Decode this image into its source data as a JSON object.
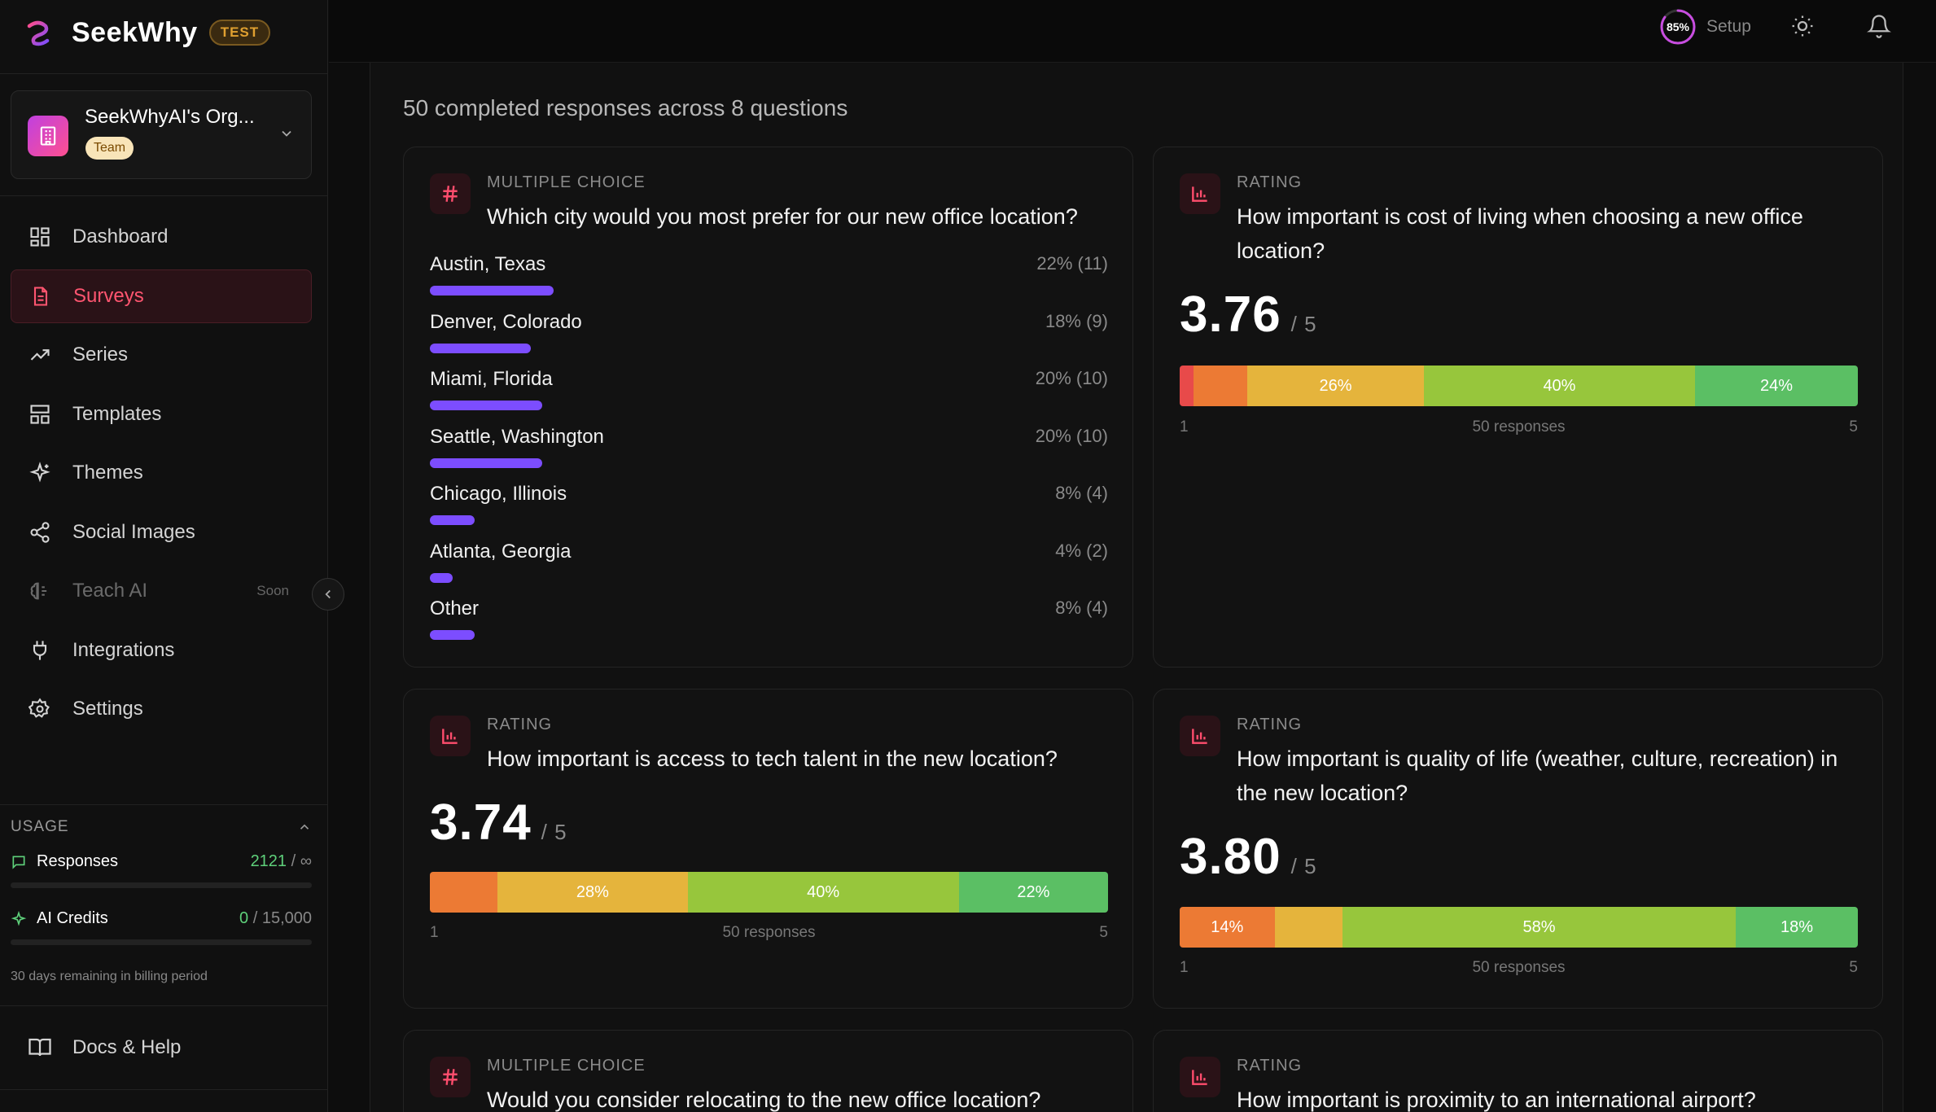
{
  "brand": {
    "name": "SeekWhy",
    "badge": "TEST"
  },
  "org": {
    "name": "SeekWhyAI's Org...",
    "plan": "Team"
  },
  "nav": {
    "dashboard": "Dashboard",
    "surveys": "Surveys",
    "series": "Series",
    "templates": "Templates",
    "themes": "Themes",
    "social": "Social Images",
    "teach": "Teach AI",
    "teach_badge": "Soon",
    "integrations": "Integrations",
    "settings": "Settings"
  },
  "usage": {
    "heading": "USAGE",
    "responses_label": "Responses",
    "responses_value": "2121",
    "responses_limit": "/ ∞",
    "credits_label": "AI Credits",
    "credits_value": "0",
    "credits_limit": "/ 15,000",
    "billing_note": "30 days remaining in billing period"
  },
  "docs": {
    "label": "Docs & Help"
  },
  "topbar": {
    "setup_percent": "85%",
    "setup_label": "Setup"
  },
  "summary": "50 completed responses across 8 questions",
  "cards": [
    {
      "type": "MULTIPLE CHOICE",
      "title": "Which city would you most prefer for our new office location?",
      "options": [
        {
          "label": "Austin, Texas",
          "pct": "22% (11)",
          "fraction": 0.22
        },
        {
          "label": "Denver, Colorado",
          "pct": "18% (9)",
          "fraction": 0.18
        },
        {
          "label": "Miami, Florida",
          "pct": "20% (10)",
          "fraction": 0.2
        },
        {
          "label": "Seattle, Washington",
          "pct": "20% (10)",
          "fraction": 0.2
        },
        {
          "label": "Chicago, Illinois",
          "pct": "8% (4)",
          "fraction": 0.08
        },
        {
          "label": "Atlanta, Georgia",
          "pct": "4% (2)",
          "fraction": 0.04
        },
        {
          "label": "Other",
          "pct": "8% (4)",
          "fraction": 0.08
        }
      ]
    },
    {
      "type": "RATING",
      "title": "How important is cost of living when choosing a new office location?",
      "score": "3.76",
      "denominator": "/ 5",
      "segments": [
        {
          "share": 2,
          "label": ""
        },
        {
          "share": 8,
          "label": ""
        },
        {
          "share": 26,
          "label": "26%"
        },
        {
          "share": 40,
          "label": "40%"
        },
        {
          "share": 24,
          "label": "24%"
        }
      ],
      "axis_min": "1",
      "axis_max": "5",
      "responses": "50 responses"
    },
    {
      "type": "RATING",
      "title": "How important is access to tech talent in the new location?",
      "score": "3.74",
      "denominator": "/ 5",
      "segments": [
        {
          "share": 0,
          "label": ""
        },
        {
          "share": 10,
          "label": ""
        },
        {
          "share": 28,
          "label": "28%"
        },
        {
          "share": 40,
          "label": "40%"
        },
        {
          "share": 22,
          "label": "22%"
        }
      ],
      "axis_min": "1",
      "axis_max": "5",
      "responses": "50 responses"
    },
    {
      "type": "RATING",
      "title": "How important is quality of life (weather, culture, recreation) in the new location?",
      "score": "3.80",
      "denominator": "/ 5",
      "segments": [
        {
          "share": 0,
          "label": ""
        },
        {
          "share": 14,
          "label": "14%"
        },
        {
          "share": 10,
          "label": ""
        },
        {
          "share": 58,
          "label": "58%"
        },
        {
          "share": 18,
          "label": "18%"
        }
      ],
      "axis_min": "1",
      "axis_max": "5",
      "responses": "50 responses"
    },
    {
      "type": "MULTIPLE CHOICE",
      "title": "Would you consider relocating to the new office location?"
    },
    {
      "type": "RATING",
      "title": "How important is proximity to an international airport?"
    }
  ]
}
